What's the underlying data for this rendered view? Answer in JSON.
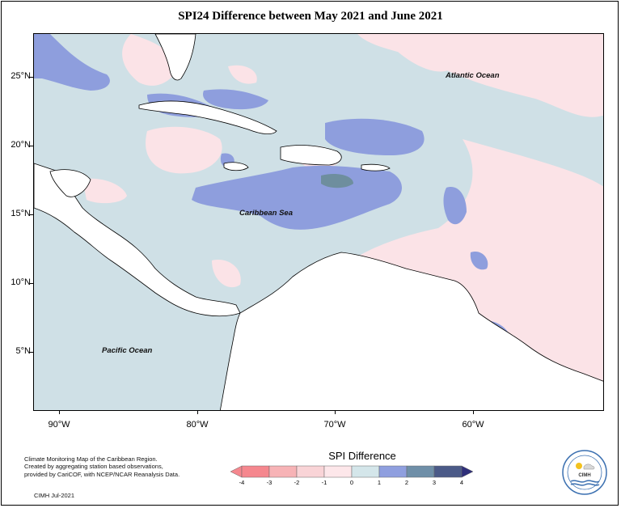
{
  "title": "SPI24 Difference between May 2021 and June 2021",
  "y_ticks": [
    "25°N",
    "20°N",
    "15°N",
    "10°N",
    "5°N"
  ],
  "x_ticks": [
    "90°W",
    "80°W",
    "70°W",
    "60°W"
  ],
  "labels": {
    "atlantic": "Atlantic Ocean",
    "caribbean": "Caribbean Sea",
    "pacific": "Pacific Ocean"
  },
  "credits": {
    "line1": "Climate Monitoring Map of the Caribbean Region.",
    "line2": "Created by aggregating station based observations,",
    "line3": "provided by CariCOF, with NCEP/NCAR Reanalysis Data.",
    "date": "CIMH Jul-2021"
  },
  "legend": {
    "title": "SPI Difference",
    "ticks": [
      "-4",
      "-3",
      "-2",
      "-1",
      "0",
      "1",
      "2",
      "3",
      "4"
    ],
    "colors": [
      "#f5878e",
      "#f7b3b6",
      "#f9d4d7",
      "#fde7ea",
      "#d4e6ea",
      "#8f9fdf",
      "#6f8fa8",
      "#4b5a88",
      "#2f2f7a"
    ]
  },
  "logo": {
    "name": "CIMH"
  },
  "map_colors": {
    "ocean_neutral": "#cfe0e6",
    "dry_light": "#fbe3e7",
    "wet_medium": "#8e9edd",
    "wet_dark": "#6e8e9e",
    "land": "#ffffff"
  }
}
